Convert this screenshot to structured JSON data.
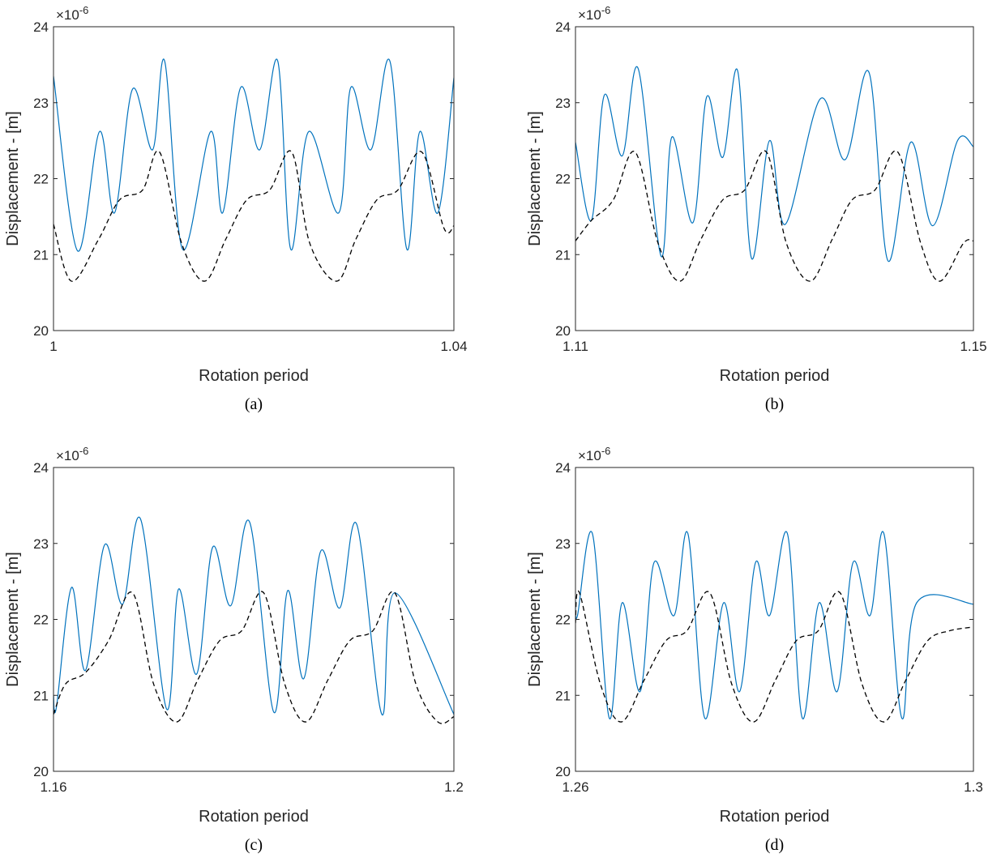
{
  "colors": {
    "series_solid": "#0072BD",
    "series_dashed": "#000000",
    "axis": "#262626"
  },
  "chart_data": [
    {
      "type": "line",
      "caption": "(a)",
      "xlabel": "Rotation period",
      "ylabel": "Displacement - [m]",
      "y_exponent": "×10",
      "y_exponent_power": "-6",
      "xlim": [
        1.0,
        1.04
      ],
      "ylim": [
        20,
        24
      ],
      "xticks": [
        "1",
        "1.04"
      ],
      "yticks": [
        "20",
        "21",
        "22",
        "23",
        "24"
      ],
      "series": [
        {
          "style": "solid",
          "color": "#0072BD",
          "x": [
            1.0,
            1.0024,
            1.0046,
            1.0061,
            1.0079,
            1.0099,
            1.0111,
            1.0129,
            1.0157,
            1.0169,
            1.0187,
            1.0206,
            1.0224,
            1.0237,
            1.0255,
            1.0285,
            1.0297,
            1.0317,
            1.0336,
            1.0353,
            1.0366,
            1.0384,
            1.04
          ],
          "y": [
            23.35,
            21.05,
            22.62,
            21.55,
            23.18,
            22.38,
            23.55,
            21.07,
            22.62,
            21.55,
            23.2,
            22.38,
            23.55,
            21.07,
            22.62,
            21.55,
            23.2,
            22.38,
            23.55,
            21.07,
            22.62,
            21.55,
            23.33
          ]
        },
        {
          "style": "dashed",
          "color": "#000000",
          "x": [
            1.0,
            1.0018,
            1.0045,
            1.0066,
            1.0089,
            1.0106,
            1.0128,
            1.0151,
            1.0172,
            1.0193,
            1.0216,
            1.0238,
            1.0256,
            1.0283,
            1.0302,
            1.0323,
            1.0344,
            1.0368,
            1.039,
            1.04
          ],
          "y": [
            21.4,
            20.65,
            21.2,
            21.72,
            21.85,
            22.35,
            21.15,
            20.65,
            21.2,
            21.72,
            21.85,
            22.35,
            21.15,
            20.65,
            21.2,
            21.72,
            21.85,
            22.35,
            21.35,
            21.38
          ]
        }
      ]
    },
    {
      "type": "line",
      "caption": "(b)",
      "xlabel": "Rotation period",
      "ylabel": "Displacement - [m]",
      "y_exponent": "×10",
      "y_exponent_power": "-6",
      "xlim": [
        1.11,
        1.15
      ],
      "ylim": [
        20,
        24
      ],
      "xticks": [
        "1.11",
        "1.15"
      ],
      "yticks": [
        "20",
        "21",
        "22",
        "23",
        "24"
      ],
      "series": [
        {
          "style": "solid",
          "color": "#0072BD",
          "x": [
            1.11,
            1.1116,
            1.1129,
            1.1147,
            1.1163,
            1.1186,
            1.1197,
            1.1218,
            1.1232,
            1.1248,
            1.1263,
            1.1277,
            1.1295,
            1.1311,
            1.1346,
            1.1371,
            1.1395,
            1.1414,
            1.1437,
            1.1459,
            1.1484,
            1.15
          ],
          "y": [
            22.48,
            21.45,
            23.1,
            22.3,
            23.45,
            20.98,
            22.55,
            21.42,
            23.08,
            22.28,
            23.42,
            20.95,
            22.5,
            21.4,
            23.05,
            22.25,
            23.4,
            20.92,
            22.48,
            21.38,
            22.5,
            22.42
          ]
        },
        {
          "style": "dashed",
          "color": "#000000",
          "x": [
            1.11,
            1.1116,
            1.1138,
            1.116,
            1.1183,
            1.1205,
            1.1226,
            1.1248,
            1.127,
            1.1292,
            1.1312,
            1.1336,
            1.1358,
            1.1378,
            1.1401,
            1.1424,
            1.1447,
            1.1466,
            1.149,
            1.15
          ],
          "y": [
            21.18,
            21.45,
            21.72,
            22.35,
            21.15,
            20.65,
            21.2,
            21.72,
            21.85,
            22.35,
            21.15,
            20.65,
            21.2,
            21.72,
            21.85,
            22.35,
            21.15,
            20.65,
            21.15,
            21.18
          ]
        }
      ]
    },
    {
      "type": "line",
      "caption": "(c)",
      "xlabel": "Rotation period",
      "ylabel": "Displacement - [m]",
      "y_exponent": "×10",
      "y_exponent_power": "-6",
      "xlim": [
        1.16,
        1.2
      ],
      "ylim": [
        20,
        24
      ],
      "xticks": [
        "1.16",
        "1.2"
      ],
      "yticks": [
        "20",
        "21",
        "22",
        "23",
        "24"
      ],
      "series": [
        {
          "style": "solid",
          "color": "#0072BD",
          "x": [
            1.16,
            1.1603,
            1.1618,
            1.1632,
            1.1651,
            1.1669,
            1.1687,
            1.1713,
            1.1725,
            1.1743,
            1.1759,
            1.1777,
            1.1796,
            1.182,
            1.1834,
            1.185,
            1.1867,
            1.1886,
            1.1903,
            1.1928,
            1.1941,
            1.2
          ],
          "y": [
            21.0,
            20.85,
            22.42,
            21.33,
            22.98,
            22.2,
            23.32,
            20.82,
            22.4,
            21.28,
            22.95,
            22.18,
            23.28,
            20.78,
            22.38,
            21.22,
            22.9,
            22.15,
            23.25,
            20.75,
            22.35,
            20.75
          ]
        },
        {
          "style": "dashed",
          "color": "#000000",
          "x": [
            1.16,
            1.1612,
            1.1632,
            1.1655,
            1.1679,
            1.17,
            1.1723,
            1.1744,
            1.1766,
            1.1788,
            1.181,
            1.1831,
            1.1852,
            1.1874,
            1.1896,
            1.1919,
            1.1941,
            1.1962,
            1.1984,
            1.2
          ],
          "y": [
            20.75,
            21.15,
            21.3,
            21.72,
            22.35,
            21.15,
            20.65,
            21.2,
            21.72,
            21.85,
            22.35,
            21.15,
            20.65,
            21.2,
            21.72,
            21.85,
            22.35,
            21.15,
            20.65,
            20.72
          ]
        }
      ]
    },
    {
      "type": "line",
      "caption": "(d)",
      "xlabel": "Rotation period",
      "ylabel": "Displacement - [m]",
      "y_exponent": "×10",
      "y_exponent_power": "-6",
      "xlim": [
        1.26,
        1.3
      ],
      "ylim": [
        20,
        24
      ],
      "xticks": [
        "1.26",
        "1.3"
      ],
      "yticks": [
        "20",
        "21",
        "22",
        "23",
        "24"
      ],
      "series": [
        {
          "style": "solid",
          "color": "#0072BD",
          "x": [
            1.26,
            1.2602,
            1.2617,
            1.2634,
            1.2647,
            1.2665,
            1.2679,
            1.2699,
            1.2713,
            1.273,
            1.2749,
            1.2765,
            1.2781,
            1.2795,
            1.2813,
            1.2828,
            1.2845,
            1.2863,
            1.2879,
            1.2896,
            1.291,
            1.2928,
            1.2943,
            1.3
          ],
          "y": [
            22.25,
            22.05,
            23.13,
            20.7,
            22.22,
            21.05,
            22.75,
            22.05,
            23.13,
            20.7,
            22.22,
            21.05,
            22.75,
            22.05,
            23.13,
            20.7,
            22.22,
            21.05,
            22.75,
            22.05,
            23.13,
            20.7,
            22.22,
            22.2
          ]
        },
        {
          "style": "dashed",
          "color": "#000000",
          "x": [
            1.26,
            1.2604,
            1.2625,
            1.2646,
            1.2669,
            1.2691,
            1.2712,
            1.2735,
            1.2757,
            1.2779,
            1.2801,
            1.2822,
            1.2844,
            1.2866,
            1.2888,
            1.291,
            1.2932,
            1.2954,
            1.2976,
            1.3
          ],
          "y": [
            21.95,
            22.35,
            21.15,
            20.65,
            21.2,
            21.72,
            21.85,
            22.35,
            21.15,
            20.65,
            21.2,
            21.72,
            21.85,
            22.35,
            21.15,
            20.65,
            21.2,
            21.72,
            21.85,
            21.9
          ]
        }
      ]
    }
  ]
}
